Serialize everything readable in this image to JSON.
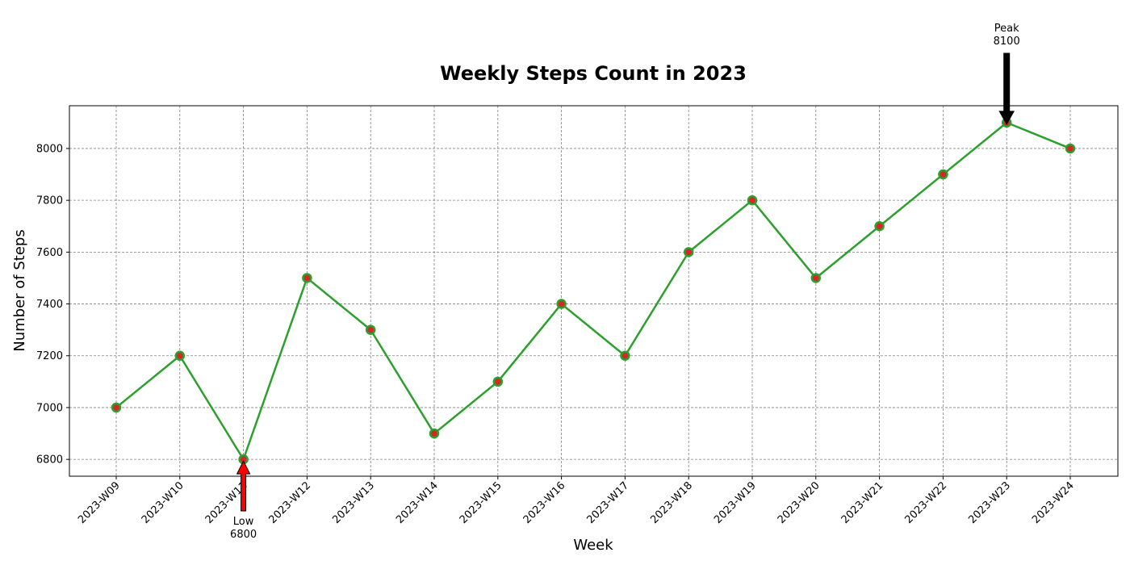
{
  "chart_data": {
    "type": "line",
    "title": "Weekly Steps Count in 2023",
    "xlabel": "Week",
    "ylabel": "Number of Steps",
    "categories": [
      "2023-W09",
      "2023-W10",
      "2023-W11",
      "2023-W12",
      "2023-W13",
      "2023-W14",
      "2023-W15",
      "2023-W16",
      "2023-W17",
      "2023-W18",
      "2023-W19",
      "2023-W20",
      "2023-W21",
      "2023-W22",
      "2023-W23",
      "2023-W24"
    ],
    "series": [
      {
        "values": [
          7000,
          7200,
          6800,
          7500,
          7300,
          6900,
          7100,
          7400,
          7200,
          7600,
          7800,
          7500,
          7700,
          7900,
          8100,
          8000
        ]
      }
    ],
    "ylim": [
      6735,
      8165
    ],
    "yticks": [
      6800,
      7000,
      7200,
      7400,
      7600,
      7800,
      8000
    ],
    "grid": true,
    "colors": {
      "line": "#2ca02c",
      "marker_fill": "#d62728",
      "marker_edge": "#2ca02c",
      "grid": "#808080",
      "peak_arrow": "#000000",
      "low_arrow": "#ff0000"
    },
    "annotations": [
      {
        "kind": "peak",
        "category": "2023-W23",
        "value": 8100,
        "line1": "Peak",
        "line2": "8100"
      },
      {
        "kind": "low",
        "category": "2023-W11",
        "value": 6800,
        "line1": "Low",
        "line2": "6800"
      }
    ]
  }
}
